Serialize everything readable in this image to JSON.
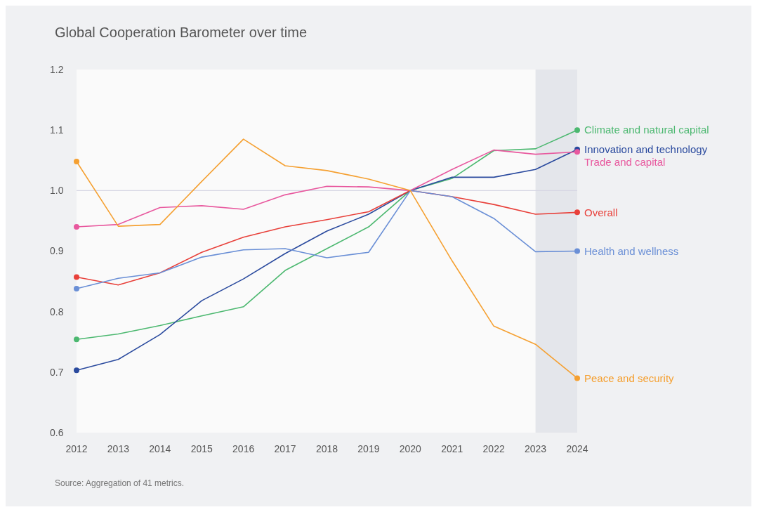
{
  "chart_data": {
    "type": "line",
    "title": "Global Cooperation Barometer over time",
    "annotations": [
      "Source: Aggregation of 41 metrics."
    ],
    "x": [
      2012,
      2013,
      2014,
      2015,
      2016,
      2017,
      2018,
      2019,
      2020,
      2021,
      2022,
      2023,
      2024
    ],
    "xlim": [
      2012,
      2024
    ],
    "xticks": [
      2012,
      2013,
      2014,
      2015,
      2016,
      2017,
      2018,
      2019,
      2020,
      2021,
      2022,
      2023,
      2024
    ],
    "ylim": [
      0.6,
      1.2
    ],
    "yticks": [
      {
        "value": 0.6,
        "label": "0.6"
      },
      {
        "value": 0.7,
        "label": "0.7"
      },
      {
        "value": 0.8,
        "label": "0.8"
      },
      {
        "value": 0.9,
        "label": "0.9"
      },
      {
        "value": 1.0,
        "label": "1.0"
      },
      {
        "value": 1.1,
        "label": "1.1"
      },
      {
        "value": 1.2,
        "label": "1.2"
      }
    ],
    "grid": false,
    "line_style": "solid",
    "ref_lines": [
      {
        "axis": "y",
        "value": 1.0,
        "color": "#d6d6e4"
      }
    ],
    "bands": [
      {
        "axis": "x",
        "from": 2023,
        "to": 2024,
        "color": "#e4e6eb"
      }
    ],
    "series": [
      {
        "name": "Climate and natural capital",
        "color": "#4cb870",
        "values": [
          0.754,
          0.763,
          0.777,
          0.793,
          0.808,
          0.868,
          0.904,
          0.94,
          1.0,
          1.02,
          1.066,
          1.069,
          1.1
        ]
      },
      {
        "name": "Innovation and technology",
        "color": "#2a4a9e",
        "values": [
          0.703,
          0.721,
          0.762,
          0.818,
          0.854,
          0.896,
          0.933,
          0.961,
          1.0,
          1.022,
          1.022,
          1.035,
          1.068
        ]
      },
      {
        "name": "Trade and capital",
        "color": "#e8589e",
        "values": [
          0.94,
          0.944,
          0.972,
          0.975,
          0.969,
          0.993,
          1.007,
          1.006,
          1.0,
          1.035,
          1.067,
          1.06,
          1.064
        ]
      },
      {
        "name": "Overall",
        "color": "#e8403a",
        "values": [
          0.857,
          0.844,
          0.864,
          0.898,
          0.923,
          0.94,
          0.952,
          0.965,
          1.0,
          0.99,
          0.977,
          0.961,
          0.964
        ]
      },
      {
        "name": "Health and wellness",
        "color": "#6a8fd6",
        "values": [
          0.838,
          0.855,
          0.864,
          0.89,
          0.902,
          0.904,
          0.889,
          0.898,
          1.0,
          0.99,
          0.954,
          0.899,
          0.9
        ]
      },
      {
        "name": "Peace and security",
        "color": "#f5a031",
        "values": [
          1.048,
          0.941,
          0.944,
          1.015,
          1.085,
          1.041,
          1.033,
          1.019,
          1.0,
          0.884,
          0.776,
          0.746,
          0.69
        ]
      }
    ]
  }
}
